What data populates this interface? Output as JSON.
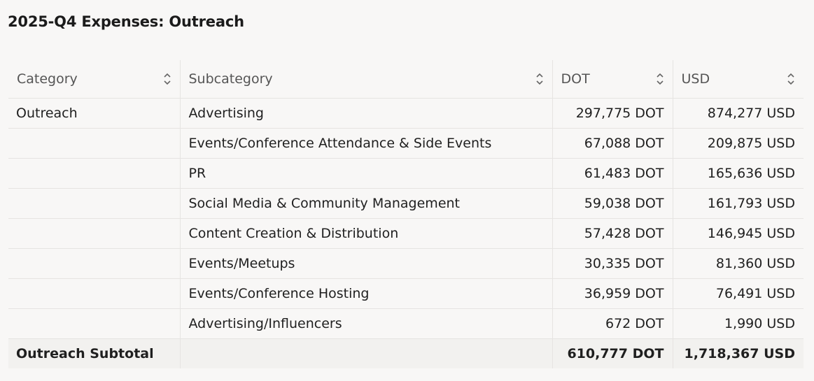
{
  "page": {
    "title": "2025-Q4 Expenses: Outreach"
  },
  "table": {
    "columns": [
      {
        "label": "Category",
        "sort_icon": "sort-updown-icon"
      },
      {
        "label": "Subcategory",
        "sort_icon": "sort-updown-icon"
      },
      {
        "label": "DOT",
        "sort_icon": "sort-updown-icon"
      },
      {
        "label": "USD",
        "sort_icon": "sort-updown-icon"
      }
    ],
    "rows": [
      {
        "category": "Outreach",
        "subcategory": "Advertising",
        "dot": "297,775 DOT",
        "usd": "874,277 USD"
      },
      {
        "category": "",
        "subcategory": "Events/Conference Attendance & Side Events",
        "dot": "67,088 DOT",
        "usd": "209,875 USD"
      },
      {
        "category": "",
        "subcategory": "PR",
        "dot": "61,483 DOT",
        "usd": "165,636 USD"
      },
      {
        "category": "",
        "subcategory": "Social Media & Community Management",
        "dot": "59,038 DOT",
        "usd": "161,793 USD"
      },
      {
        "category": "",
        "subcategory": "Content Creation & Distribution",
        "dot": "57,428 DOT",
        "usd": "146,945 USD"
      },
      {
        "category": "",
        "subcategory": "Events/Meetups",
        "dot": "30,335 DOT",
        "usd": "81,360 USD"
      },
      {
        "category": "",
        "subcategory": "Events/Conference Hosting",
        "dot": "36,959 DOT",
        "usd": "76,491 USD"
      },
      {
        "category": "",
        "subcategory": "Advertising/Influencers",
        "dot": "672 DOT",
        "usd": "1,990 USD"
      }
    ],
    "subtotal": {
      "label": "Outreach Subtotal",
      "subcategory": "",
      "dot": "610,777 DOT",
      "usd": "1,718,367 USD"
    }
  }
}
